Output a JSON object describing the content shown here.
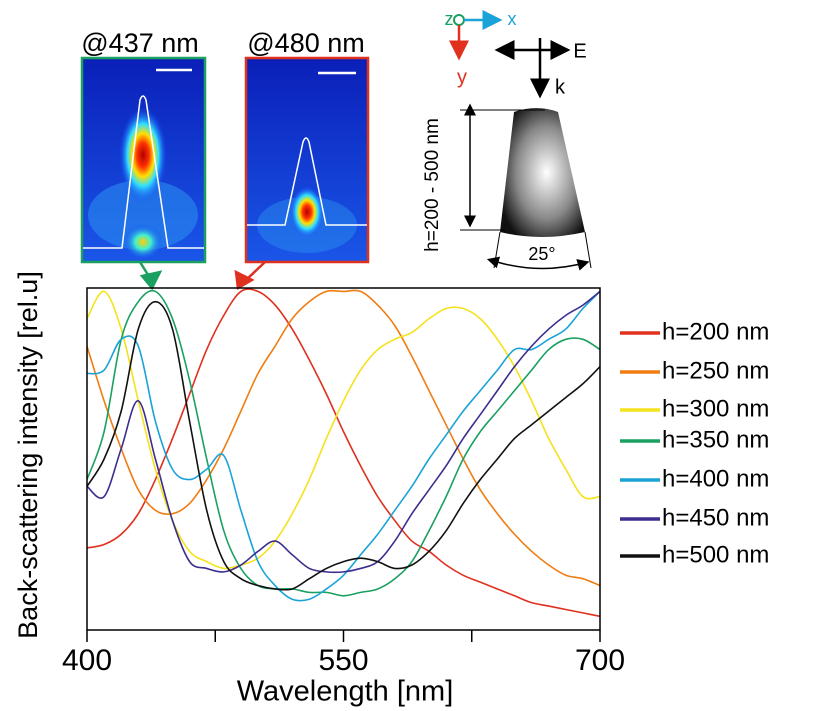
{
  "chart_data": {
    "type": "line",
    "x_label": "Wavelength [nm]",
    "y_label": "Back-scattering intensity [rel.u]",
    "xlim": [
      400,
      700
    ],
    "xticks": [
      400,
      550,
      700
    ],
    "xminorticks": [
      475,
      625
    ],
    "ylim": [
      0,
      1
    ],
    "legend": "right",
    "x": [
      400,
      410,
      420,
      430,
      440,
      450,
      460,
      470,
      480,
      490,
      500,
      510,
      520,
      530,
      540,
      550,
      560,
      570,
      580,
      590,
      600,
      610,
      620,
      630,
      640,
      650,
      660,
      670,
      680,
      690,
      700
    ],
    "series": [
      {
        "name": "h=200 nm",
        "color": "#e0301e",
        "values": [
          0.24,
          0.25,
          0.28,
          0.34,
          0.44,
          0.56,
          0.69,
          0.82,
          0.92,
          0.99,
          0.99,
          0.95,
          0.88,
          0.79,
          0.69,
          0.58,
          0.48,
          0.39,
          0.32,
          0.26,
          0.23,
          0.19,
          0.16,
          0.14,
          0.12,
          0.1,
          0.08,
          0.07,
          0.06,
          0.05,
          0.04
        ]
      },
      {
        "name": "h=250 nm",
        "color": "#f07d12",
        "values": [
          0.83,
          0.67,
          0.53,
          0.41,
          0.35,
          0.34,
          0.37,
          0.44,
          0.53,
          0.64,
          0.75,
          0.83,
          0.91,
          0.96,
          0.99,
          0.99,
          0.99,
          0.95,
          0.89,
          0.8,
          0.7,
          0.6,
          0.5,
          0.41,
          0.34,
          0.28,
          0.23,
          0.19,
          0.16,
          0.15,
          0.13
        ]
      },
      {
        "name": "h=300 nm",
        "color": "#f5e11c",
        "values": [
          0.91,
          0.99,
          0.88,
          0.67,
          0.47,
          0.32,
          0.23,
          0.2,
          0.18,
          0.19,
          0.21,
          0.26,
          0.34,
          0.44,
          0.56,
          0.67,
          0.76,
          0.82,
          0.85,
          0.87,
          0.91,
          0.94,
          0.94,
          0.91,
          0.85,
          0.77,
          0.67,
          0.56,
          0.47,
          0.39,
          0.39
        ]
      },
      {
        "name": "h=350 nm",
        "color": "#1aa060",
        "values": [
          0.44,
          0.58,
          0.85,
          0.96,
          0.99,
          0.91,
          0.73,
          0.5,
          0.29,
          0.18,
          0.13,
          0.12,
          0.12,
          0.11,
          0.11,
          0.1,
          0.11,
          0.12,
          0.15,
          0.2,
          0.29,
          0.39,
          0.5,
          0.58,
          0.64,
          0.7,
          0.76,
          0.82,
          0.85,
          0.85,
          0.82
        ]
      },
      {
        "name": "h=400 nm",
        "color": "#1ba3d8",
        "values": [
          0.75,
          0.76,
          0.85,
          0.83,
          0.61,
          0.47,
          0.44,
          0.47,
          0.51,
          0.35,
          0.2,
          0.13,
          0.09,
          0.09,
          0.12,
          0.16,
          0.22,
          0.28,
          0.35,
          0.42,
          0.5,
          0.57,
          0.64,
          0.7,
          0.76,
          0.82,
          0.82,
          0.85,
          0.88,
          0.94,
          0.99
        ]
      },
      {
        "name": "h=450 nm",
        "color": "#3b2e8f",
        "values": [
          0.42,
          0.39,
          0.53,
          0.67,
          0.5,
          0.32,
          0.2,
          0.18,
          0.17,
          0.19,
          0.23,
          0.26,
          0.22,
          0.18,
          0.17,
          0.17,
          0.18,
          0.2,
          0.26,
          0.34,
          0.41,
          0.48,
          0.56,
          0.63,
          0.7,
          0.77,
          0.83,
          0.88,
          0.92,
          0.95,
          0.99
        ]
      },
      {
        "name": "h=500 nm",
        "color": "#111111",
        "values": [
          0.42,
          0.5,
          0.64,
          0.88,
          0.96,
          0.88,
          0.61,
          0.35,
          0.2,
          0.15,
          0.13,
          0.12,
          0.12,
          0.15,
          0.18,
          0.2,
          0.21,
          0.2,
          0.18,
          0.19,
          0.23,
          0.29,
          0.37,
          0.44,
          0.5,
          0.56,
          0.6,
          0.64,
          0.68,
          0.72,
          0.77
        ]
      }
    ],
    "annotations": {
      "inset_left": "@437 nm",
      "inset_right": "@480 nm",
      "axis_z": "z",
      "axis_x": "x",
      "axis_y": "y",
      "field_e": "E",
      "wave_k": "k",
      "height": "h=200 - 500 nm",
      "angle": "25°"
    }
  }
}
